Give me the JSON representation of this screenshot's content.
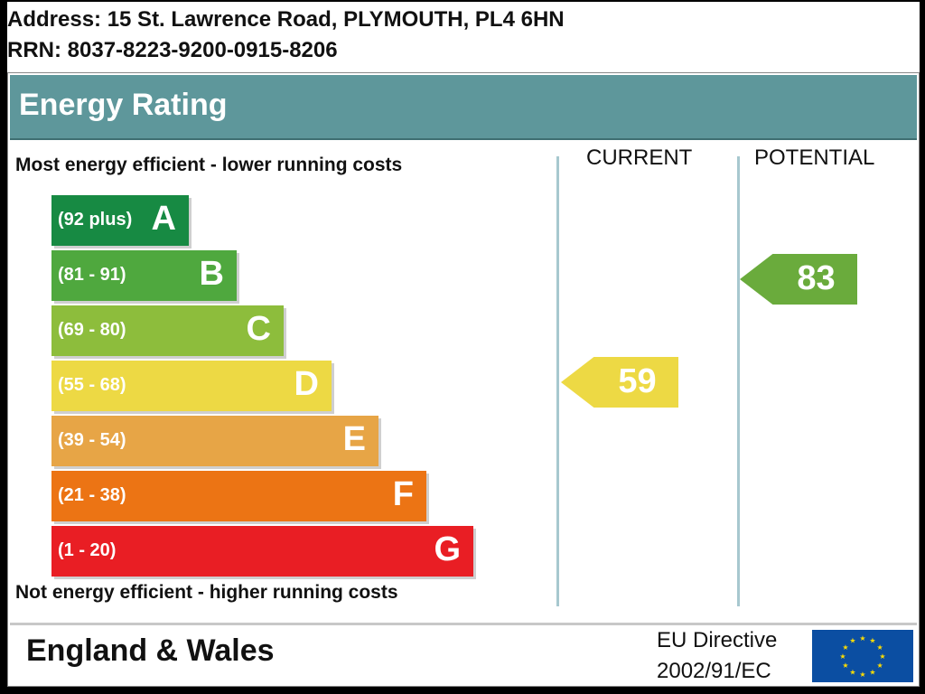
{
  "header": {
    "address": "Address: 15 St. Lawrence Road, PLYMOUTH, PL4 6HN",
    "rrn": "RRN: 8037-8223-9200-0915-8206"
  },
  "chart_data": {
    "type": "bar",
    "title": "Energy Rating",
    "top_note": "Most energy efficient - lower running costs",
    "bottom_note": "Not energy efficient - higher running costs",
    "columns": [
      "CURRENT",
      "POTENTIAL"
    ],
    "bands": [
      {
        "range": "(92 plus)",
        "letter": "A",
        "min": 92,
        "max": 100,
        "color": "#178a43"
      },
      {
        "range": "(81 - 91)",
        "letter": "B",
        "min": 81,
        "max": 91,
        "color": "#4fa83e"
      },
      {
        "range": "(69 - 80)",
        "letter": "C",
        "min": 69,
        "max": 80,
        "color": "#8dbd3c"
      },
      {
        "range": "(55 - 68)",
        "letter": "D",
        "min": 55,
        "max": 68,
        "color": "#edd944"
      },
      {
        "range": "(39 - 54)",
        "letter": "E",
        "min": 39,
        "max": 54,
        "color": "#e7a546"
      },
      {
        "range": "(21 - 38)",
        "letter": "F",
        "min": 21,
        "max": 38,
        "color": "#ec7414"
      },
      {
        "range": "(1 - 20)",
        "letter": "G",
        "min": 1,
        "max": 20,
        "color": "#e91e24"
      }
    ],
    "current": {
      "value": 59,
      "band": "D",
      "color": "#edd944"
    },
    "potential": {
      "value": 83,
      "band": "B",
      "color": "#6aab3c"
    }
  },
  "footer": {
    "region": "England & Wales",
    "directive_line1": "EU Directive",
    "directive_line2": "2002/91/EC"
  },
  "icons": {
    "eu_flag": "eu-flag-icon"
  }
}
